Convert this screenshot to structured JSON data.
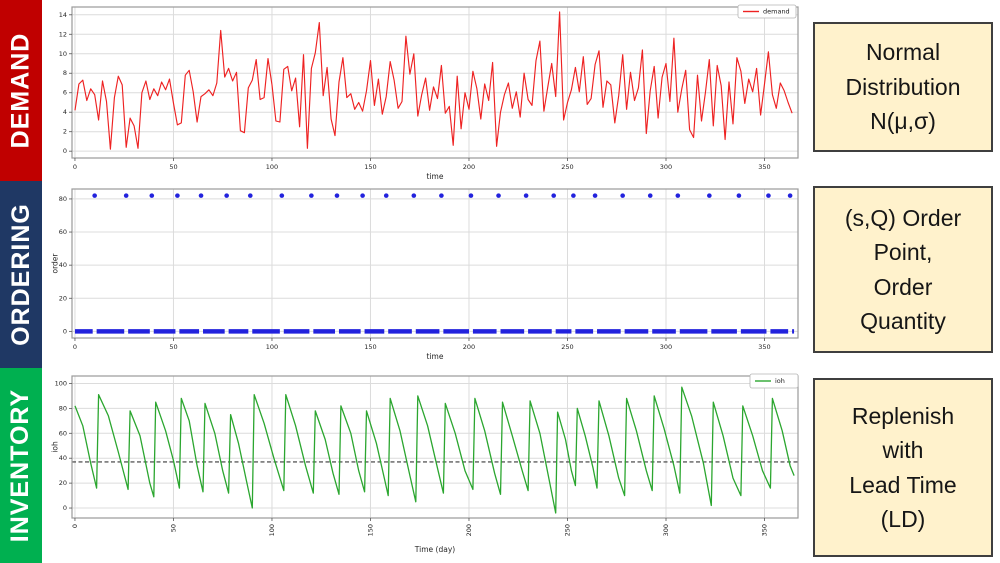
{
  "bands": [
    {
      "label": "DEMAND",
      "color": "#c00000"
    },
    {
      "label": "ORDERING",
      "color": "#1f3864"
    },
    {
      "label": "INVENTORY",
      "color": "#00b050"
    }
  ],
  "notes": [
    {
      "bg": "#fff2cc",
      "lines": [
        "Normal",
        "Distribution",
        "N(μ,σ)"
      ]
    },
    {
      "bg": "#fff2cc",
      "lines": [
        "(s,Q) Order",
        "Point,",
        "Order",
        "Quantity"
      ]
    },
    {
      "bg": "#fff2cc",
      "lines": [
        "Replenish",
        "with",
        "Lead Time",
        "(LD)"
      ]
    }
  ],
  "style": {
    "grid_color": "#dcdcdc",
    "spine_color": "#9a9a9a",
    "tick_color": "#262626",
    "legend_border": "#b5b5b5",
    "note_border": "#3f3f3f"
  },
  "chart_data": [
    {
      "id": "demand",
      "type": "line",
      "xlabel": "time",
      "ylabel": "",
      "legend_label": "demand",
      "x_ticks": [
        0,
        50,
        100,
        150,
        200,
        250,
        300,
        350
      ],
      "y_ticks": [
        0,
        2,
        4,
        6,
        8,
        10,
        12,
        14
      ],
      "xlim": [
        -1.5,
        367
      ],
      "ylim": [
        -0.7,
        14.8
      ],
      "grid": true,
      "series": [
        {
          "name": "demand",
          "color": "#ee2222",
          "x_start": 0,
          "x_step": 2,
          "values": [
            4.2,
            6.9,
            7.3,
            5.2,
            6.4,
            5.8,
            3.2,
            7.2,
            5.1,
            0.2,
            5.5,
            7.7,
            6.8,
            0.4,
            3.4,
            2.6,
            0.3,
            6.0,
            7.2,
            5.3,
            6.4,
            5.7,
            7.1,
            6.3,
            7.4,
            4.9,
            2.7,
            2.9,
            7.8,
            8.3,
            6.1,
            3.0,
            5.6,
            5.9,
            6.3,
            5.7,
            7.0,
            12.4,
            7.6,
            8.5,
            7.2,
            8.1,
            2.1,
            1.9,
            6.5,
            7.3,
            9.4,
            5.3,
            5.5,
            9.5,
            6.8,
            3.1,
            3.0,
            8.4,
            8.7,
            6.2,
            7.5,
            2.5,
            9.9,
            0.3,
            8.5,
            10.1,
            13.2,
            5.7,
            8.6,
            3.3,
            1.6,
            7.1,
            9.6,
            5.5,
            5.9,
            4.3,
            5.0,
            4.1,
            6.2,
            9.3,
            4.7,
            7.4,
            3.8,
            5.6,
            9.2,
            7.3,
            4.4,
            5.1,
            11.8,
            7.9,
            10.0,
            3.6,
            5.8,
            7.5,
            4.2,
            6.6,
            5.4,
            8.8,
            3.9,
            4.6,
            0.6,
            7.7,
            2.3,
            6.0,
            4.3,
            8.2,
            6.4,
            3.3,
            6.9,
            5.2,
            9.1,
            0.5,
            4.0,
            5.8,
            7.0,
            4.4,
            6.1,
            3.5,
            8.0,
            5.3,
            4.7,
            9.3,
            11.3,
            4.1,
            6.6,
            9.0,
            5.6,
            14.3,
            3.2,
            5.0,
            6.3,
            8.6,
            6.1,
            9.7,
            4.8,
            5.4,
            8.9,
            10.3,
            4.5,
            7.2,
            6.8,
            2.9,
            5.7,
            9.9,
            4.3,
            8.1,
            5.2,
            6.5,
            10.4,
            1.8,
            6.2,
            8.7,
            3.4,
            7.6,
            9.0,
            5.1,
            11.6,
            4.0,
            6.4,
            8.3,
            2.2,
            1.4,
            7.8,
            3.1,
            6.0,
            9.4,
            2.6,
            8.8,
            6.7,
            1.2,
            7.1,
            2.8,
            9.6,
            8.2,
            4.9,
            7.4,
            6.1,
            8.5,
            3.7,
            6.9,
            10.2,
            5.8,
            4.4,
            7.0,
            6.2,
            5.0,
            3.9
          ]
        }
      ]
    },
    {
      "id": "order",
      "type": "scatter",
      "xlabel": "time",
      "ylabel": "order",
      "x_ticks": [
        0,
        50,
        100,
        150,
        200,
        250,
        300,
        350
      ],
      "y_ticks": [
        0,
        20,
        40,
        60,
        80
      ],
      "xlim": [
        -1.5,
        367
      ],
      "ylim": [
        -4,
        86
      ],
      "grid": true,
      "marker_color": "#2222dd",
      "order_quantity": 82,
      "order_days": [
        10,
        26,
        39,
        52,
        64,
        77,
        89,
        105,
        120,
        133,
        146,
        158,
        172,
        186,
        201,
        215,
        229,
        243,
        253,
        264,
        278,
        292,
        306,
        322,
        337,
        352,
        363
      ],
      "zero_band": {
        "y": 0,
        "x_end": 365
      }
    },
    {
      "id": "ioh",
      "type": "line",
      "xlabel": "Time (day)",
      "ylabel": "ioh",
      "legend_label": "ioh",
      "x_ticks": [
        0,
        50,
        100,
        150,
        200,
        250,
        300,
        350
      ],
      "y_ticks": [
        0,
        20,
        40,
        60,
        80,
        100
      ],
      "x_tick_rotation": 90,
      "xlim": [
        -1.5,
        367
      ],
      "ylim": [
        -8,
        106
      ],
      "grid": true,
      "reorder_point_line": {
        "y": 37,
        "color": "#3a3a3a",
        "dashed": true
      },
      "series": [
        {
          "name": "ioh",
          "color": "#2ba62f",
          "points": [
            [
              0,
              82
            ],
            [
              4,
              66
            ],
            [
              8,
              36
            ],
            [
              11,
              16
            ],
            [
              12,
              91
            ],
            [
              17,
              74
            ],
            [
              22,
              45
            ],
            [
              27,
              15
            ],
            [
              28,
              78
            ],
            [
              33,
              58
            ],
            [
              38,
              20
            ],
            [
              40,
              9
            ],
            [
              41,
              85
            ],
            [
              46,
              62
            ],
            [
              50,
              38
            ],
            [
              53,
              16
            ],
            [
              54,
              88
            ],
            [
              58,
              70
            ],
            [
              62,
              34
            ],
            [
              65,
              13
            ],
            [
              66,
              84
            ],
            [
              71,
              60
            ],
            [
              75,
              30
            ],
            [
              78,
              12
            ],
            [
              79,
              75
            ],
            [
              83,
              52
            ],
            [
              87,
              22
            ],
            [
              90,
              0
            ],
            [
              91,
              91
            ],
            [
              96,
              68
            ],
            [
              101,
              40
            ],
            [
              106,
              14
            ],
            [
              107,
              91
            ],
            [
              112,
              66
            ],
            [
              117,
              34
            ],
            [
              121,
              12
            ],
            [
              122,
              78
            ],
            [
              127,
              55
            ],
            [
              131,
              28
            ],
            [
              134,
              11
            ],
            [
              135,
              82
            ],
            [
              140,
              60
            ],
            [
              144,
              30
            ],
            [
              147,
              13
            ],
            [
              148,
              78
            ],
            [
              153,
              52
            ],
            [
              157,
              24
            ],
            [
              159,
              10
            ],
            [
              160,
              88
            ],
            [
              165,
              62
            ],
            [
              170,
              26
            ],
            [
              173,
              5
            ],
            [
              174,
              90
            ],
            [
              179,
              66
            ],
            [
              184,
              32
            ],
            [
              187,
              12
            ],
            [
              188,
              84
            ],
            [
              193,
              60
            ],
            [
              198,
              30
            ],
            [
              202,
              15
            ],
            [
              203,
              88
            ],
            [
              208,
              62
            ],
            [
              213,
              28
            ],
            [
              216,
              11
            ],
            [
              217,
              85
            ],
            [
              222,
              58
            ],
            [
              227,
              30
            ],
            [
              230,
              14
            ],
            [
              231,
              86
            ],
            [
              236,
              60
            ],
            [
              241,
              20
            ],
            [
              244,
              -4
            ],
            [
              245,
              77
            ],
            [
              249,
              55
            ],
            [
              252,
              30
            ],
            [
              254,
              18
            ],
            [
              255,
              80
            ],
            [
              259,
              58
            ],
            [
              263,
              32
            ],
            [
              265,
              16
            ],
            [
              266,
              86
            ],
            [
              271,
              58
            ],
            [
              276,
              24
            ],
            [
              279,
              10
            ],
            [
              280,
              88
            ],
            [
              285,
              62
            ],
            [
              290,
              30
            ],
            [
              293,
              14
            ],
            [
              294,
              90
            ],
            [
              299,
              64
            ],
            [
              304,
              34
            ],
            [
              307,
              12
            ],
            [
              308,
              97
            ],
            [
              313,
              74
            ],
            [
              319,
              36
            ],
            [
              323,
              2
            ],
            [
              324,
              85
            ],
            [
              329,
              58
            ],
            [
              334,
              24
            ],
            [
              338,
              10
            ],
            [
              339,
              82
            ],
            [
              344,
              58
            ],
            [
              349,
              30
            ],
            [
              353,
              16
            ],
            [
              354,
              88
            ],
            [
              359,
              62
            ],
            [
              363,
              34
            ],
            [
              365,
              26
            ]
          ]
        }
      ]
    }
  ]
}
